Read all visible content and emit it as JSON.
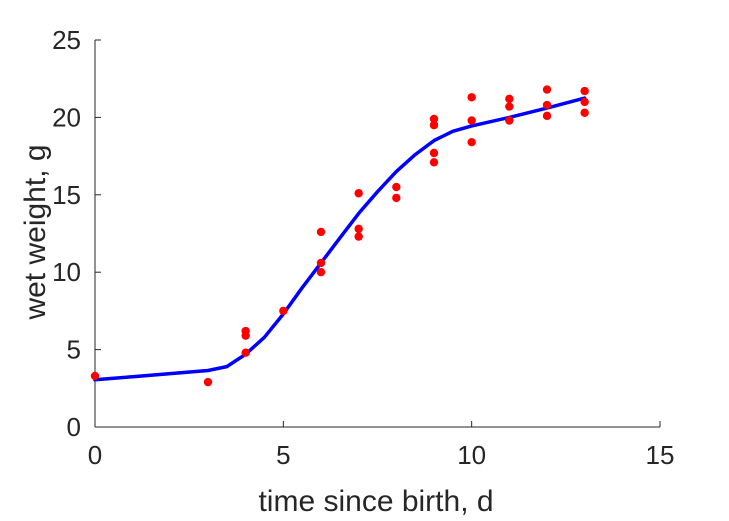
{
  "chart_data": {
    "type": "scatter",
    "xlabel": "time since birth, d",
    "ylabel": "wet weight, g",
    "xlim": [
      0,
      15
    ],
    "ylim": [
      0,
      25
    ],
    "xticks": [
      0,
      5,
      10,
      15
    ],
    "yticks": [
      0,
      5,
      10,
      15,
      20,
      25
    ],
    "grid": false,
    "box": false,
    "colors": {
      "points": "#ff0000",
      "fit": "#0000ff",
      "axes": "#262626"
    },
    "series": [
      {
        "kind": "scatter",
        "x": [
          0,
          3,
          4,
          4,
          4,
          5,
          6,
          6,
          6,
          7,
          7,
          7,
          8,
          8,
          9,
          9,
          9,
          9,
          10,
          10,
          10,
          11,
          11,
          11,
          12,
          12,
          12,
          13,
          13,
          13
        ],
        "y": [
          3.3,
          2.9,
          6.2,
          5.9,
          4.8,
          7.5,
          12.6,
          10.6,
          10.0,
          15.1,
          12.8,
          12.3,
          15.5,
          14.8,
          19.9,
          19.5,
          17.7,
          17.1,
          21.3,
          19.8,
          18.4,
          21.2,
          20.7,
          19.8,
          21.8,
          20.8,
          20.1,
          21.7,
          21.0,
          20.3
        ]
      },
      {
        "kind": "line",
        "x": [
          0,
          1,
          2,
          3,
          3.5,
          4,
          4.5,
          5,
          5.5,
          6,
          6.5,
          7,
          7.5,
          8,
          8.5,
          9,
          9.5,
          10,
          11,
          12,
          13
        ],
        "y": [
          3.05,
          3.25,
          3.45,
          3.65,
          3.9,
          4.7,
          5.8,
          7.3,
          9.0,
          10.6,
          12.2,
          13.8,
          15.2,
          16.5,
          17.6,
          18.5,
          19.1,
          19.45,
          20.0,
          20.6,
          21.25
        ]
      }
    ]
  }
}
